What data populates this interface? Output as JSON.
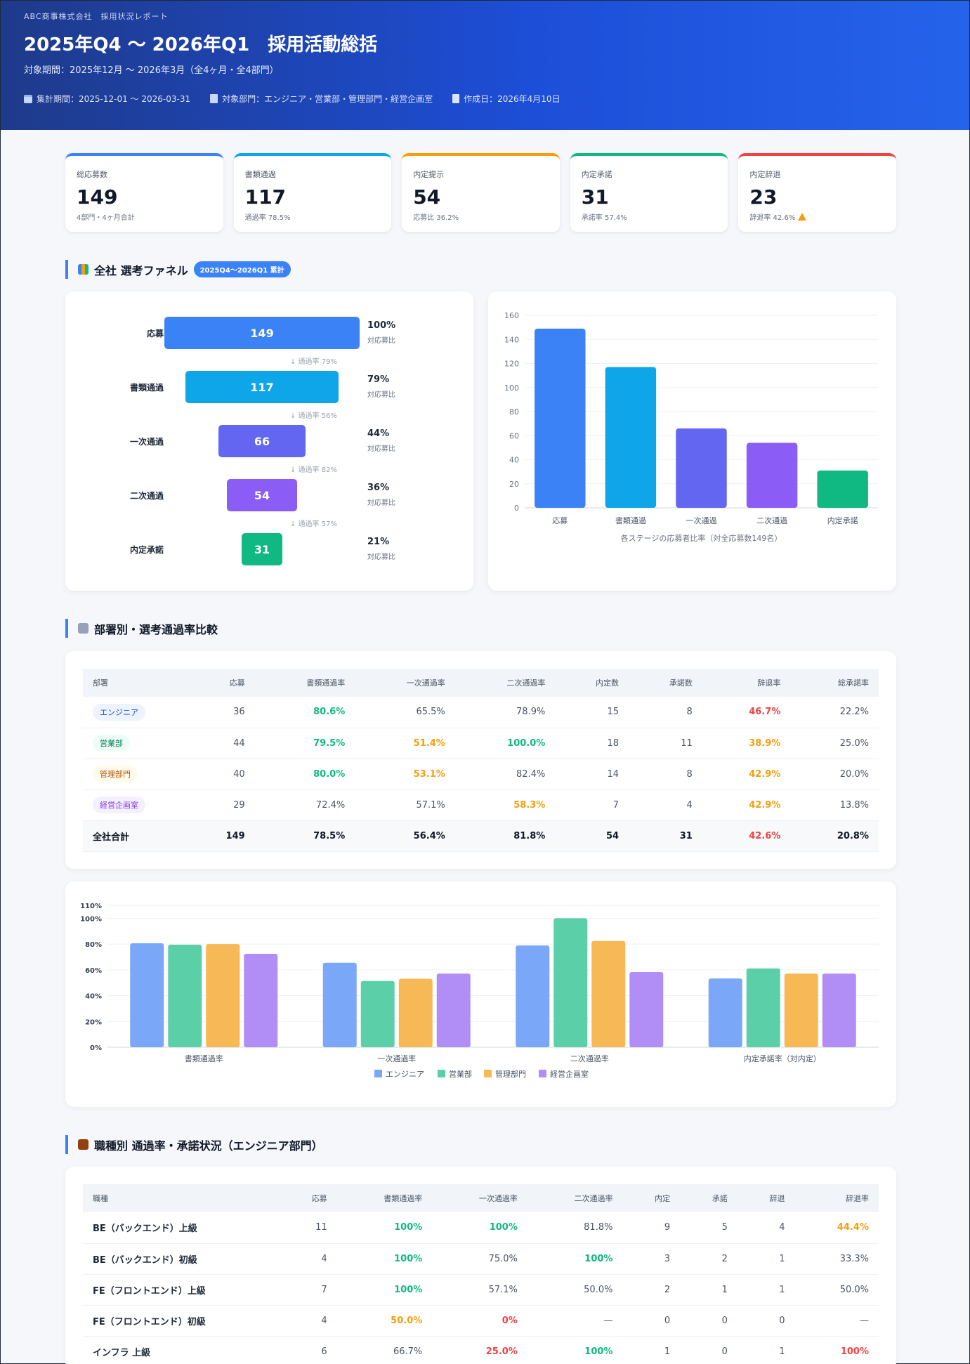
{
  "header": {
    "company": "ABC商事株式会社　採用状況レポート",
    "title": "2025年Q4 〜 2026年Q1　採用活動総括",
    "subtitle": "対象期間：2025年12月 〜 2026年3月（全4ヶ月・全4部門）",
    "meta": [
      {
        "icon": "calendar-icon",
        "text": "集計期間：2025-12-01 〜 2026-03-31"
      },
      {
        "icon": "building-icon",
        "text": "対象部門：エンジニア・営業部・管理部門・経営企画室"
      },
      {
        "icon": "document-icon",
        "text": "作成日：2026年4月10日"
      }
    ]
  },
  "kpis": [
    {
      "label": "総応募数",
      "value": "149",
      "sub": "4部門・4ヶ月合計",
      "color": "#3b82f6"
    },
    {
      "label": "書類通過",
      "value": "117",
      "sub": "通過率 78.5%",
      "color": "#0ea5e9"
    },
    {
      "label": "内定提示",
      "value": "54",
      "sub": "応募比 36.2%",
      "color": "#f59e0b"
    },
    {
      "label": "内定承諾",
      "value": "31",
      "sub": "承諾率 57.4%",
      "color": "#10b981"
    },
    {
      "label": "内定辞退",
      "value": "23",
      "sub": "辞退率 42.6%",
      "color": "#ef4444"
    }
  ],
  "funnel_section": {
    "title": "全社 選考ファネル",
    "badge": "2025Q4〜2026Q1 累計",
    "stages": [
      {
        "label": "応募",
        "value": 149,
        "pct": "100%",
        "pct_label": "対応募比",
        "color": "#3b82f6"
      },
      {
        "label": "書類通過",
        "value": 117,
        "pct": "79%",
        "pct_label": "対応募比",
        "color": "#0ea5e9"
      },
      {
        "label": "一次通過",
        "value": 66,
        "pct": "44%",
        "pct_label": "対応募比",
        "color": "#6366f1"
      },
      {
        "label": "二次通過",
        "value": 54,
        "pct": "36%",
        "pct_label": "対応募比",
        "color": "#8b5cf6"
      },
      {
        "label": "内定承諾",
        "value": 31,
        "pct": "21%",
        "pct_label": "対応募比",
        "color": "#10b981"
      }
    ],
    "conversions": [
      "↓ 通過率 79%",
      "↓ 通過率 56%",
      "↓ 通過率 82%",
      "↓ 通過率 57%"
    ]
  },
  "chart_data": [
    {
      "type": "bar",
      "categories": [
        "応募",
        "書類通過",
        "一次通過",
        "二次通過",
        "内定承諾"
      ],
      "values": [
        149,
        117,
        66,
        54,
        31
      ],
      "colors": [
        "#3b82f6",
        "#0ea5e9",
        "#6366f1",
        "#8b5cf6",
        "#10b981"
      ],
      "title": "",
      "xlabel": "各ステージの応募者比率（対全応募数149名）",
      "ylabel": "",
      "ylim": [
        0,
        160
      ],
      "yticks": [
        0,
        20,
        40,
        60,
        80,
        100,
        120,
        140,
        160
      ]
    },
    {
      "type": "bar",
      "categories": [
        "書類通過率",
        "一次通過率",
        "二次通過率",
        "内定承諾率（対内定）"
      ],
      "series": [
        {
          "name": "エンジニア",
          "values": [
            80.6,
            65.5,
            78.9,
            53.3
          ],
          "color": "#7aa7f7"
        },
        {
          "name": "営業部",
          "values": [
            79.5,
            51.4,
            100.0,
            61.1
          ],
          "color": "#5bd0a8"
        },
        {
          "name": "管理部門",
          "values": [
            80.0,
            53.1,
            82.4,
            57.1
          ],
          "color": "#f6b955"
        },
        {
          "name": "経営企画室",
          "values": [
            72.4,
            57.1,
            58.3,
            57.1
          ],
          "color": "#b08ef5"
        }
      ],
      "ylim": [
        0,
        110
      ],
      "yticks": [
        0,
        20,
        40,
        60,
        80,
        100,
        110
      ],
      "ytick_labels": [
        "0%",
        "20%",
        "40%",
        "60%",
        "80%",
        "100%",
        "110%"
      ],
      "legend": "bottom"
    }
  ],
  "dept_section": {
    "title": "部署別・選考通過率比較",
    "columns": [
      "部署",
      "応募",
      "書類通過率",
      "一次通過率",
      "二次通過率",
      "内定数",
      "承諾数",
      "辞退率",
      "総承諾率"
    ],
    "rows": [
      {
        "dept": "エンジニア",
        "tag_bg": "#eef4ff",
        "tag_fg": "#1d4ed8",
        "cells": [
          {
            "v": "36",
            "c": ""
          },
          {
            "v": "80.6%",
            "c": "g"
          },
          {
            "v": "65.5%",
            "c": ""
          },
          {
            "v": "78.9%",
            "c": ""
          },
          {
            "v": "15",
            "c": ""
          },
          {
            "v": "8",
            "c": ""
          },
          {
            "v": "46.7%",
            "c": "r"
          },
          {
            "v": "22.2%",
            "c": ""
          }
        ]
      },
      {
        "dept": "営業部",
        "tag_bg": "#ecfdf5",
        "tag_fg": "#047857",
        "cells": [
          {
            "v": "44",
            "c": ""
          },
          {
            "v": "79.5%",
            "c": "g"
          },
          {
            "v": "51.4%",
            "c": "o"
          },
          {
            "v": "100.0%",
            "c": "g"
          },
          {
            "v": "18",
            "c": ""
          },
          {
            "v": "11",
            "c": ""
          },
          {
            "v": "38.9%",
            "c": "o"
          },
          {
            "v": "25.0%",
            "c": ""
          }
        ]
      },
      {
        "dept": "管理部門",
        "tag_bg": "#fffbeb",
        "tag_fg": "#b45309",
        "cells": [
          {
            "v": "40",
            "c": ""
          },
          {
            "v": "80.0%",
            "c": "g"
          },
          {
            "v": "53.1%",
            "c": "o"
          },
          {
            "v": "82.4%",
            "c": ""
          },
          {
            "v": "14",
            "c": ""
          },
          {
            "v": "8",
            "c": ""
          },
          {
            "v": "42.9%",
            "c": "o"
          },
          {
            "v": "20.0%",
            "c": ""
          }
        ]
      },
      {
        "dept": "経営企画室",
        "tag_bg": "#f5f0ff",
        "tag_fg": "#7c3aed",
        "cells": [
          {
            "v": "29",
            "c": ""
          },
          {
            "v": "72.4%",
            "c": ""
          },
          {
            "v": "57.1%",
            "c": ""
          },
          {
            "v": "58.3%",
            "c": "o"
          },
          {
            "v": "7",
            "c": ""
          },
          {
            "v": "4",
            "c": ""
          },
          {
            "v": "42.9%",
            "c": "o"
          },
          {
            "v": "13.8%",
            "c": ""
          }
        ]
      }
    ],
    "total": {
      "label": "全社合計",
      "cells": [
        {
          "v": "149",
          "c": ""
        },
        {
          "v": "78.5%",
          "c": ""
        },
        {
          "v": "56.4%",
          "c": ""
        },
        {
          "v": "81.8%",
          "c": ""
        },
        {
          "v": "54",
          "c": ""
        },
        {
          "v": "31",
          "c": ""
        },
        {
          "v": "42.6%",
          "c": "r"
        },
        {
          "v": "20.8%",
          "c": ""
        }
      ]
    }
  },
  "job_section": {
    "title": "職種別 通過率・承諾状況（エンジニア部門）",
    "columns": [
      "職種",
      "応募",
      "書類通過率",
      "一次通過率",
      "二次通過率",
      "内定",
      "承諾",
      "辞退",
      "辞退率"
    ],
    "rows": [
      {
        "name": "BE（バックエンド）上級",
        "cells": [
          {
            "v": "11",
            "c": ""
          },
          {
            "v": "100%",
            "c": "g"
          },
          {
            "v": "100%",
            "c": "g"
          },
          {
            "v": "81.8%",
            "c": ""
          },
          {
            "v": "9",
            "c": ""
          },
          {
            "v": "5",
            "c": ""
          },
          {
            "v": "4",
            "c": ""
          },
          {
            "v": "44.4%",
            "c": "o"
          }
        ]
      },
      {
        "name": "BE（バックエンド）初級",
        "cells": [
          {
            "v": "4",
            "c": ""
          },
          {
            "v": "100%",
            "c": "g"
          },
          {
            "v": "75.0%",
            "c": ""
          },
          {
            "v": "100%",
            "c": "g"
          },
          {
            "v": "3",
            "c": ""
          },
          {
            "v": "2",
            "c": ""
          },
          {
            "v": "1",
            "c": ""
          },
          {
            "v": "33.3%",
            "c": ""
          }
        ]
      },
      {
        "name": "FE（フロントエンド）上級",
        "cells": [
          {
            "v": "7",
            "c": ""
          },
          {
            "v": "100%",
            "c": "g"
          },
          {
            "v": "57.1%",
            "c": ""
          },
          {
            "v": "50.0%",
            "c": ""
          },
          {
            "v": "2",
            "c": ""
          },
          {
            "v": "1",
            "c": ""
          },
          {
            "v": "1",
            "c": ""
          },
          {
            "v": "50.0%",
            "c": ""
          }
        ]
      },
      {
        "name": "FE（フロントエンド）初級",
        "cells": [
          {
            "v": "4",
            "c": ""
          },
          {
            "v": "50.0%",
            "c": "o"
          },
          {
            "v": "0%",
            "c": "r"
          },
          {
            "v": "—",
            "c": ""
          },
          {
            "v": "0",
            "c": ""
          },
          {
            "v": "0",
            "c": ""
          },
          {
            "v": "0",
            "c": ""
          },
          {
            "v": "—",
            "c": ""
          }
        ]
      },
      {
        "name": "インフラ 上級",
        "cells": [
          {
            "v": "6",
            "c": ""
          },
          {
            "v": "66.7%",
            "c": ""
          },
          {
            "v": "25.0%",
            "c": "r"
          },
          {
            "v": "100%",
            "c": "g"
          },
          {
            "v": "1",
            "c": ""
          },
          {
            "v": "0",
            "c": ""
          },
          {
            "v": "1",
            "c": ""
          },
          {
            "v": "100%",
            "c": "r"
          }
        ]
      }
    ]
  }
}
